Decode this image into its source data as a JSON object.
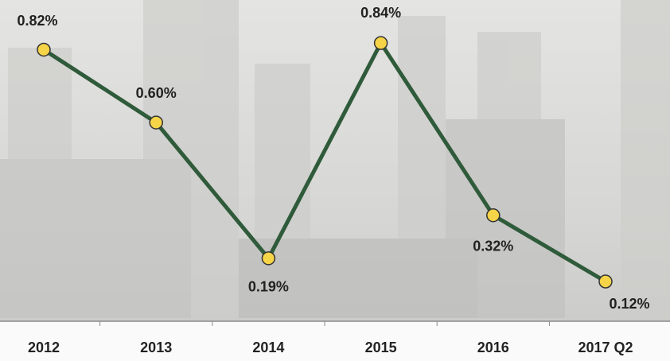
{
  "chart_data": {
    "type": "line",
    "categories": [
      "2012",
      "2013",
      "2014",
      "2015",
      "2016",
      "2017 Q2"
    ],
    "series": [
      {
        "color": "#2f5b3a",
        "marker_color": "#f6d448",
        "values": [
          0.82,
          0.6,
          0.19,
          0.84,
          0.32,
          0.12
        ],
        "value_labels": [
          "0.82%",
          "0.60%",
          "0.19%",
          "0.84%",
          "0.32%",
          "0.12%"
        ]
      }
    ],
    "ylim": [
      0,
      0.97
    ]
  }
}
